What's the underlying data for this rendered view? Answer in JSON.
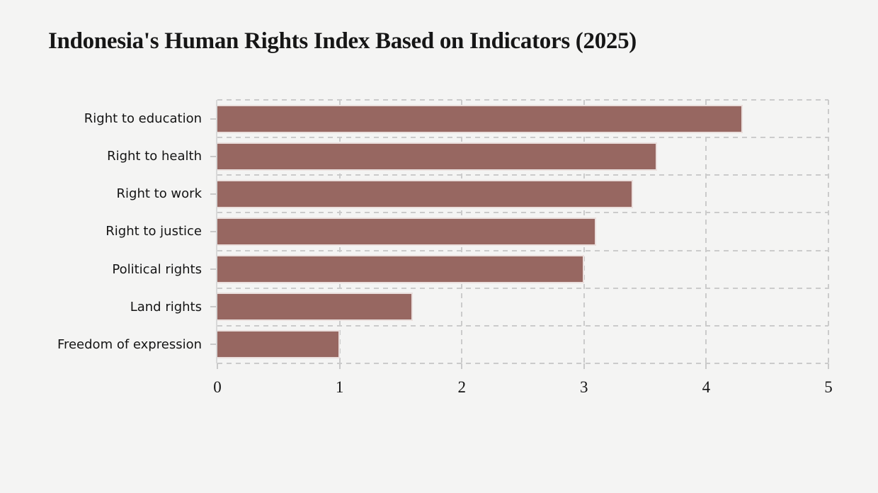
{
  "title": "Indonesia's Human Rights Index Based on Indicators (2025)",
  "chart_data": {
    "type": "bar",
    "orientation": "horizontal",
    "title": "Indonesia's Human Rights Index Based on Indicators (2025)",
    "categories": [
      "Right to education",
      "Right to health",
      "Right to work",
      "Right to justice",
      "Political rights",
      "Land rights",
      "Freedom of expression"
    ],
    "values": [
      4.3,
      3.6,
      3.4,
      3.1,
      3.0,
      1.6,
      1.0
    ],
    "xlabel": "",
    "ylabel": "",
    "xlim": [
      0,
      5
    ],
    "x_ticks": [
      0,
      1,
      2,
      3,
      4,
      5
    ],
    "grid": "dashed",
    "legend": "none",
    "colors": {
      "bar_fill": "#976761",
      "bar_edge": "#EADFDD",
      "background": "#F4F4F3",
      "grid_line": "#CBCBCB",
      "axis_spine": "#D8D8D8",
      "text": "#141414"
    }
  }
}
